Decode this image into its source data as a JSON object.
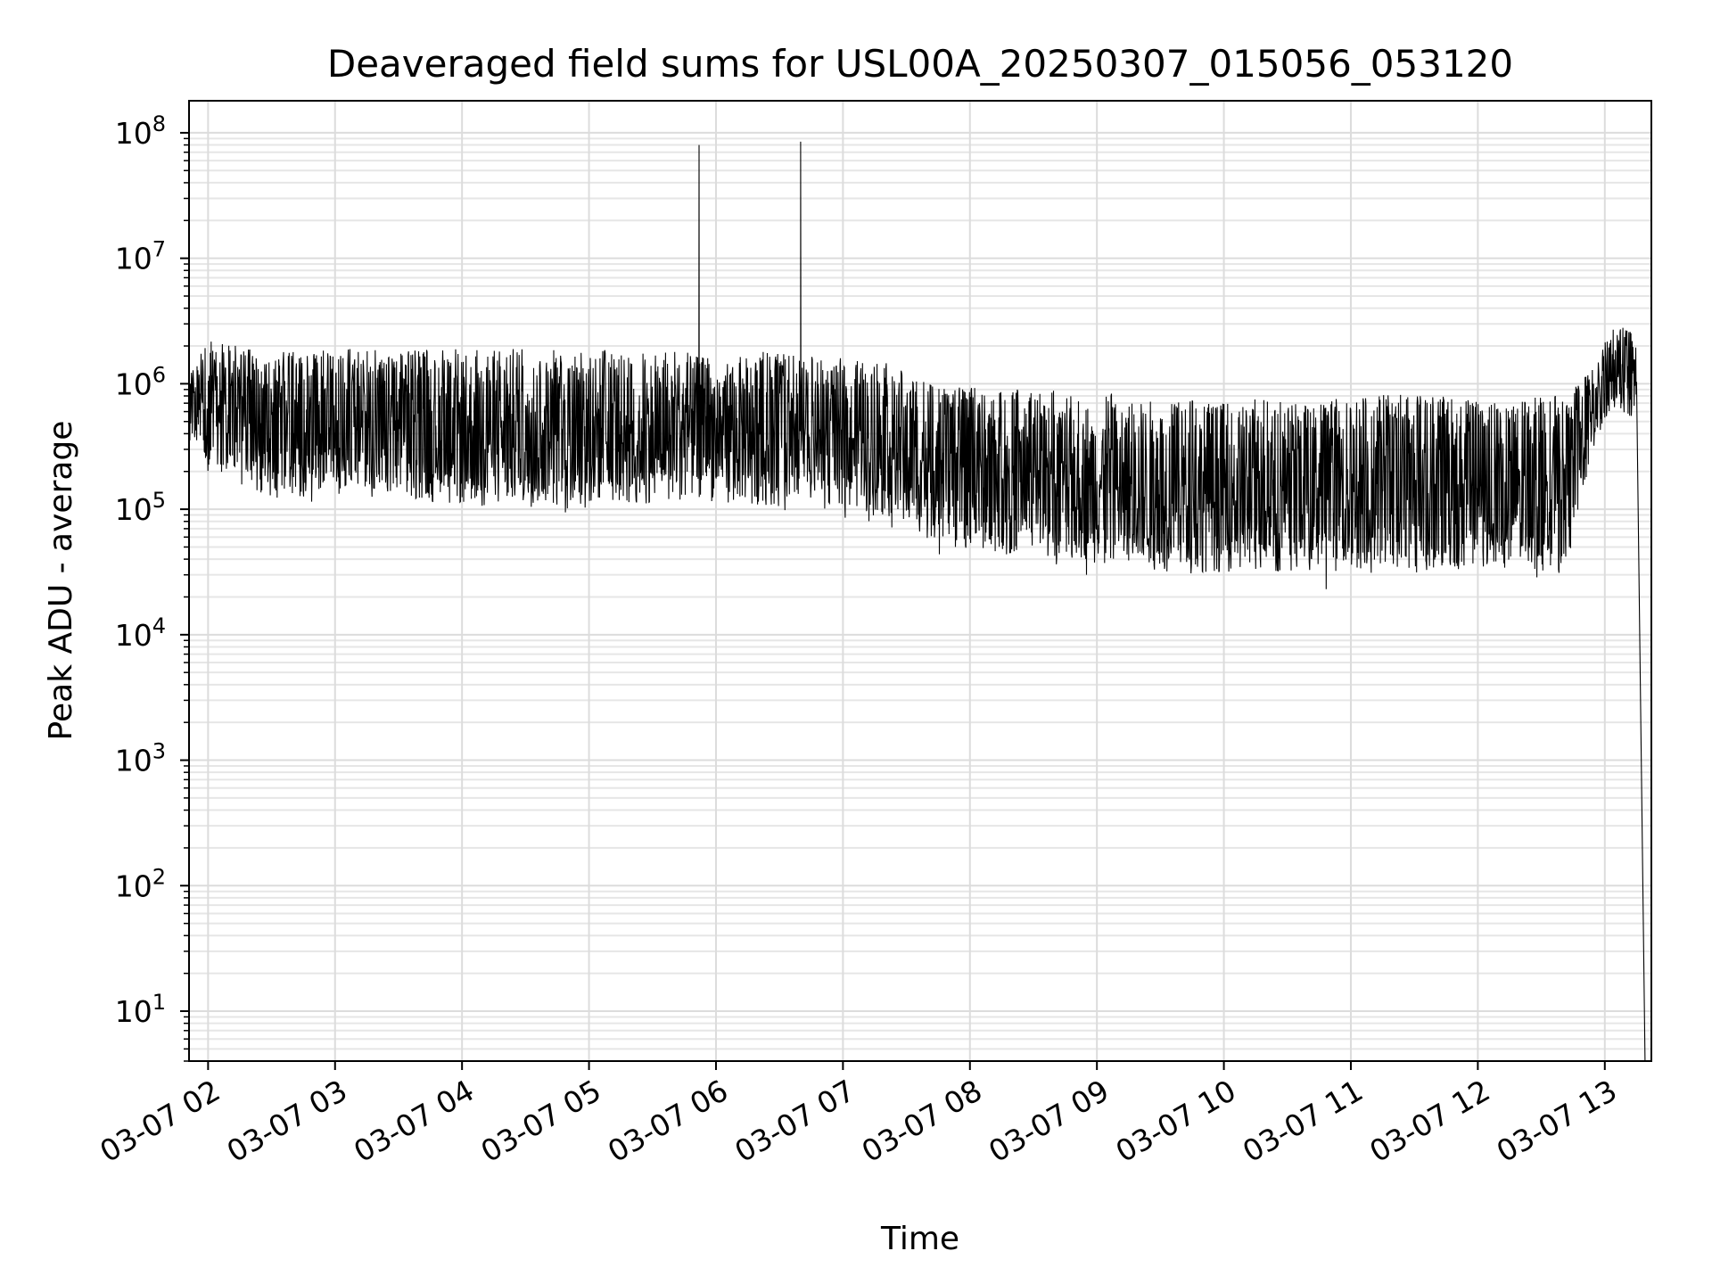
{
  "chart_data": {
    "type": "line",
    "title": "Deaveraged field sums for USL00A_20250307_015056_053120",
    "xlabel": "Time",
    "ylabel": "Peak ADU - average",
    "y_scale": "log",
    "ylim": [
      4,
      180000000
    ],
    "xlim": [
      "2025-03-07 01:51",
      "2025-03-07 13:22"
    ],
    "grid": true,
    "x_ticks": [
      "03-07 02",
      "03-07 03",
      "03-07 04",
      "03-07 05",
      "03-07 06",
      "03-07 07",
      "03-07 08",
      "03-07 09",
      "03-07 10",
      "03-07 11",
      "03-07 12",
      "03-07 13"
    ],
    "x_tick_times": [
      "2025-03-07 02:00",
      "2025-03-07 03:00",
      "2025-03-07 04:00",
      "2025-03-07 05:00",
      "2025-03-07 06:00",
      "2025-03-07 07:00",
      "2025-03-07 08:00",
      "2025-03-07 09:00",
      "2025-03-07 10:00",
      "2025-03-07 11:00",
      "2025-03-07 12:00",
      "2025-03-07 13:00"
    ],
    "y_ticks": [
      10,
      100,
      1000,
      10000,
      100000,
      1000000,
      10000000,
      100000000
    ],
    "y_tick_labels": [
      {
        "base": "10",
        "exp": "1"
      },
      {
        "base": "10",
        "exp": "2"
      },
      {
        "base": "10",
        "exp": "3"
      },
      {
        "base": "10",
        "exp": "4"
      },
      {
        "base": "10",
        "exp": "5"
      },
      {
        "base": "10",
        "exp": "6"
      },
      {
        "base": "10",
        "exp": "7"
      },
      {
        "base": "10",
        "exp": "8"
      }
    ],
    "series": [
      {
        "color": "#000000",
        "envelope": [
          {
            "t": "2025-03-07 01:51",
            "upper": 1200000,
            "lower": 300000
          },
          {
            "t": "2025-03-07 02:00",
            "upper": 2500000,
            "lower": 150000
          },
          {
            "t": "2025-03-07 02:30",
            "upper": 1800000,
            "lower": 80000
          },
          {
            "t": "2025-03-07 03:00",
            "upper": 1900000,
            "lower": 90000
          },
          {
            "t": "2025-03-07 03:30",
            "upper": 1900000,
            "lower": 80000
          },
          {
            "t": "2025-03-07 04:00",
            "upper": 1900000,
            "lower": 70000
          },
          {
            "t": "2025-03-07 05:00",
            "upper": 1900000,
            "lower": 70000
          },
          {
            "t": "2025-03-07 05:50",
            "upper": 1800000,
            "lower": 80000
          },
          {
            "t": "2025-03-07 06:30",
            "upper": 1800000,
            "lower": 70000
          },
          {
            "t": "2025-03-07 07:00",
            "upper": 1600000,
            "lower": 70000
          },
          {
            "t": "2025-03-07 07:30",
            "upper": 1400000,
            "lower": 50000
          },
          {
            "t": "2025-03-07 07:45",
            "upper": 1000000,
            "lower": 32000
          },
          {
            "t": "2025-03-07 08:30",
            "upper": 900000,
            "lower": 28000
          },
          {
            "t": "2025-03-07 09:30",
            "upper": 800000,
            "lower": 20000
          },
          {
            "t": "2025-03-07 10:30",
            "upper": 750000,
            "lower": 20000
          },
          {
            "t": "2025-03-07 11:30",
            "upper": 850000,
            "lower": 20000
          },
          {
            "t": "2025-03-07 12:40",
            "upper": 800000,
            "lower": 20000
          },
          {
            "t": "2025-03-07 12:45",
            "upper": 900000,
            "lower": 40000
          },
          {
            "t": "2025-03-07 12:55",
            "upper": 1500000,
            "lower": 250000
          },
          {
            "t": "2025-03-07 13:05",
            "upper": 3000000,
            "lower": 500000
          },
          {
            "t": "2025-03-07 13:15",
            "upper": 2500000,
            "lower": 400000
          }
        ],
        "spikes": [
          {
            "t": "2025-03-07 05:52",
            "value": 80000000
          },
          {
            "t": "2025-03-07 06:40",
            "value": 85000000
          }
        ],
        "end_drop": {
          "t": "2025-03-07 13:19",
          "value": 4
        }
      }
    ]
  }
}
